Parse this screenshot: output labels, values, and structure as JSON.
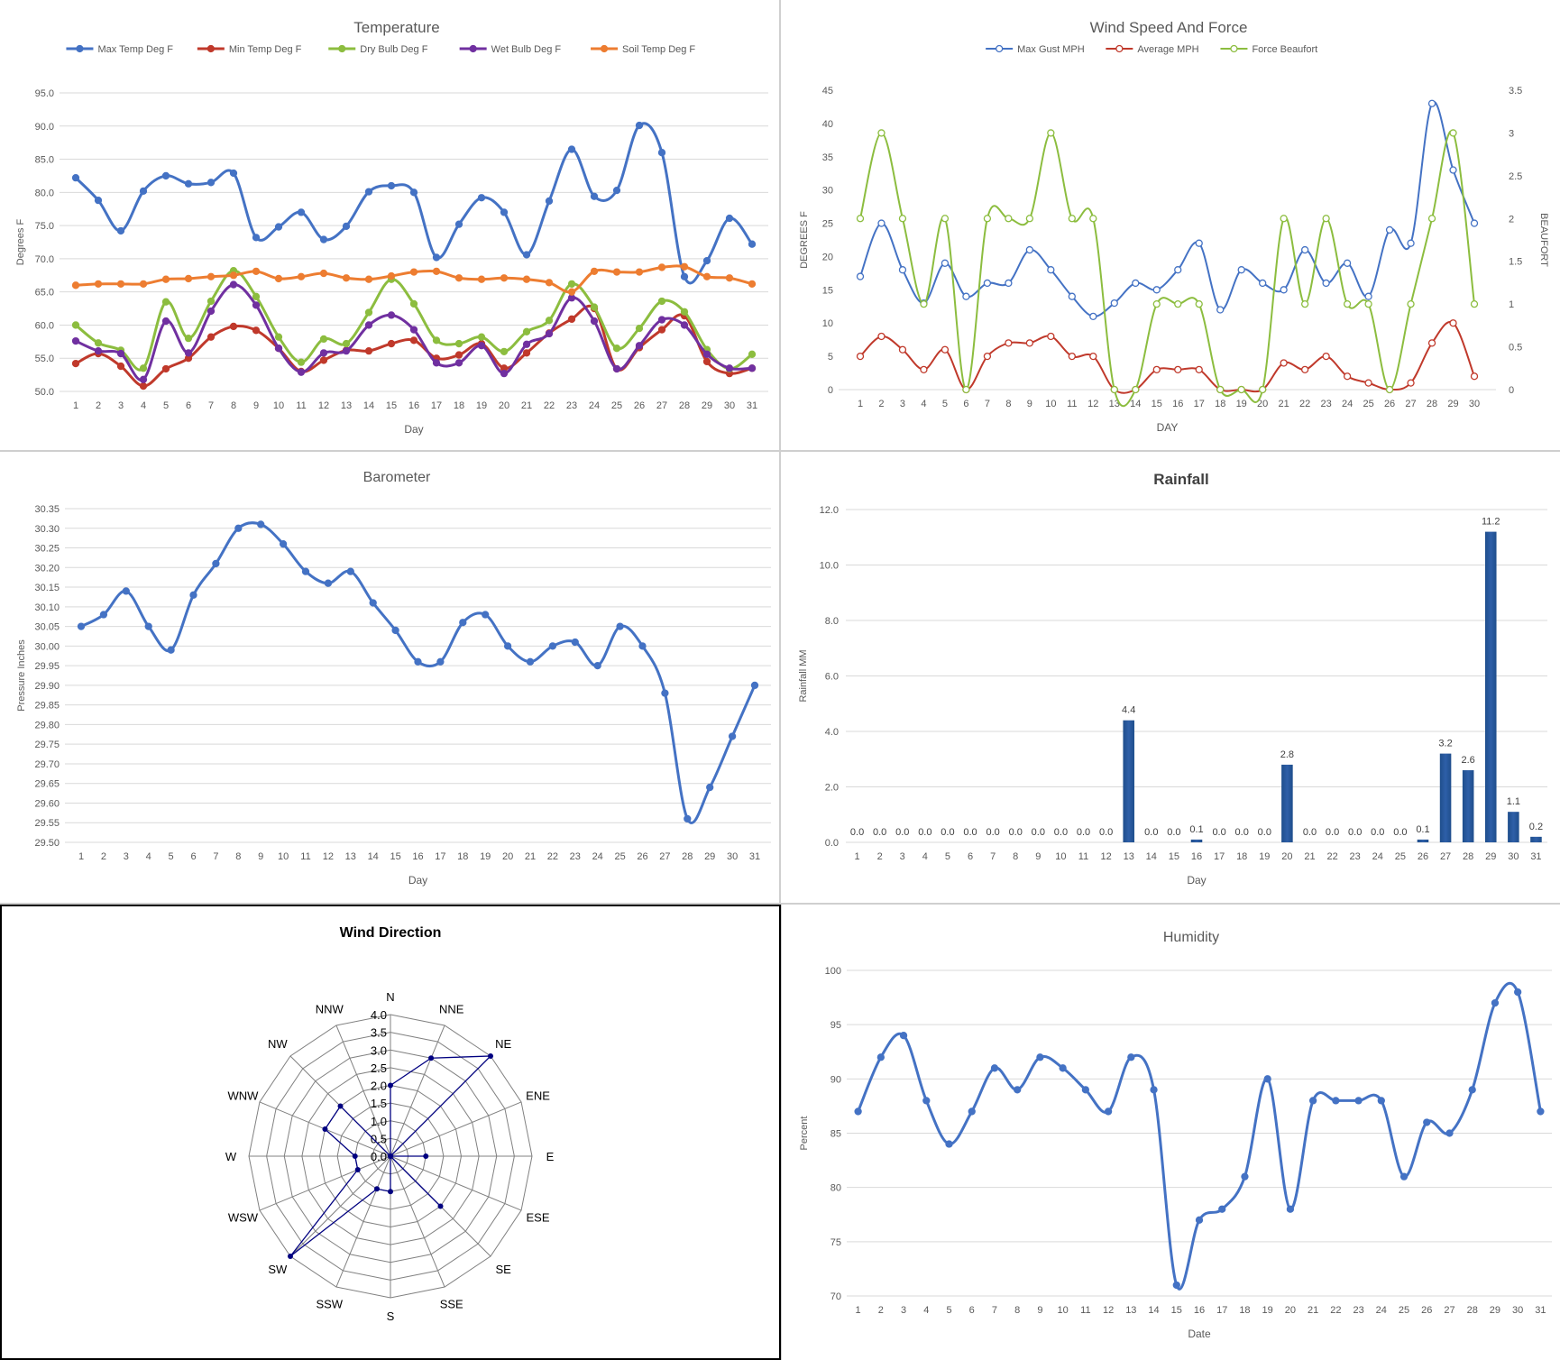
{
  "chart_data": [
    {
      "id": "temperature",
      "type": "line",
      "title": "Temperature",
      "xlabel": "Day",
      "ylabel": "Degrees F",
      "categories": [
        "1",
        "2",
        "3",
        "4",
        "5",
        "6",
        "7",
        "8",
        "9",
        "10",
        "11",
        "12",
        "13",
        "14",
        "15",
        "16",
        "17",
        "18",
        "19",
        "20",
        "21",
        "22",
        "23",
        "24",
        "25",
        "26",
        "27",
        "28",
        "29",
        "30",
        "31"
      ],
      "ylim": [
        50,
        95
      ],
      "yticks": [
        "50.0",
        "55.0",
        "60.0",
        "65.0",
        "70.0",
        "75.0",
        "80.0",
        "85.0",
        "90.0",
        "95.0"
      ],
      "grid": true,
      "legend": "top",
      "series": [
        {
          "name": "Max Temp Deg F",
          "color": "#4472c4",
          "values": [
            82.2,
            78.8,
            74.2,
            80.2,
            82.5,
            81.3,
            81.5,
            82.9,
            73.2,
            74.8,
            77.0,
            72.9,
            74.9,
            80.1,
            81.0,
            80.0,
            70.2,
            75.2,
            79.2,
            77.0,
            70.6,
            78.7,
            86.5,
            79.4,
            80.3,
            90.1,
            86.0,
            67.3,
            69.7,
            76.1,
            72.2
          ]
        },
        {
          "name": "Min Temp Deg F",
          "color": "#c0392b",
          "values": [
            54.2,
            55.7,
            53.8,
            50.8,
            53.4,
            55.0,
            58.2,
            59.8,
            59.2,
            56.5,
            53.0,
            54.7,
            56.2,
            56.1,
            57.2,
            57.7,
            55.0,
            55.5,
            57.2,
            53.5,
            55.8,
            58.8,
            60.9,
            62.5,
            53.4,
            56.6,
            59.3,
            61.4,
            54.5,
            52.7,
            53.5
          ]
        },
        {
          "name": "Dry Bulb Deg F",
          "color": "#8cbd3f",
          "values": [
            60.0,
            57.3,
            56.2,
            53.5,
            63.5,
            58.0,
            63.6,
            68.2,
            64.3,
            58.2,
            54.4,
            57.9,
            57.2,
            61.9,
            66.9,
            63.2,
            57.7,
            57.2,
            58.2,
            56.0,
            59.0,
            60.7,
            66.2,
            62.7,
            56.5,
            59.5,
            63.6,
            62.0,
            56.3,
            53.4,
            55.6
          ]
        },
        {
          "name": "Wet Bulb Deg F",
          "color": "#7030a0",
          "values": [
            57.6,
            56.1,
            55.7,
            51.8,
            60.6,
            55.8,
            62.1,
            66.1,
            63.0,
            56.5,
            52.9,
            55.8,
            56.1,
            60.0,
            61.5,
            59.3,
            54.3,
            54.3,
            56.9,
            52.7,
            57.1,
            58.7,
            64.1,
            60.6,
            53.4,
            56.9,
            60.8,
            60.0,
            55.6,
            53.5,
            53.5
          ]
        },
        {
          "name": "Soil Temp Deg F",
          "color": "#ed7d31",
          "values": [
            66.0,
            66.2,
            66.2,
            66.2,
            66.9,
            67.0,
            67.3,
            67.5,
            68.1,
            67.0,
            67.3,
            67.8,
            67.1,
            66.9,
            67.4,
            68.0,
            68.1,
            67.1,
            66.9,
            67.1,
            66.9,
            66.4,
            65.0,
            68.1,
            68.0,
            68.0,
            68.7,
            68.8,
            67.3,
            67.1,
            66.2
          ]
        }
      ]
    },
    {
      "id": "wind",
      "type": "line",
      "title": "Wind Speed And Force",
      "xlabel": "DAY",
      "ylabel": "DEGREES F",
      "ylabel2": "BEAUFORT",
      "categories": [
        "1",
        "2",
        "3",
        "4",
        "5",
        "6",
        "7",
        "8",
        "9",
        "10",
        "11",
        "12",
        "13",
        "14",
        "15",
        "16",
        "17",
        "18",
        "19",
        "20",
        "21",
        "22",
        "23",
        "24",
        "25",
        "26",
        "27",
        "28",
        "29",
        "30"
      ],
      "ylim": [
        0,
        45
      ],
      "yticks": [
        "0",
        "5",
        "10",
        "15",
        "20",
        "25",
        "30",
        "35",
        "40",
        "45"
      ],
      "y2lim": [
        0,
        3.5
      ],
      "y2ticks": [
        "0",
        "0.5",
        "1",
        "1.5",
        "2",
        "2.5",
        "3",
        "3.5"
      ],
      "grid": false,
      "legend": "top",
      "series": [
        {
          "name": "Max Gust MPH",
          "color": "#4472c4",
          "axis": "left",
          "values": [
            17,
            25,
            18,
            13,
            19,
            14,
            16,
            16,
            21,
            18,
            14,
            11,
            13,
            16,
            15,
            18,
            22,
            12,
            18,
            16,
            15,
            21,
            16,
            19,
            14,
            24,
            22,
            43,
            33,
            25
          ]
        },
        {
          "name": "Average MPH",
          "color": "#c0392b",
          "axis": "left",
          "values": [
            5,
            8,
            6,
            3,
            6,
            0,
            5,
            7,
            7,
            8,
            5,
            5,
            0,
            0,
            3,
            3,
            3,
            0,
            0,
            0,
            4,
            3,
            5,
            2,
            1,
            0,
            1,
            7,
            10,
            2
          ]
        },
        {
          "name": "Force Beaufort",
          "color": "#8cbd3f",
          "axis": "right",
          "values": [
            2,
            3,
            2,
            1,
            2,
            0,
            2,
            2,
            2,
            3,
            2,
            2,
            0,
            0,
            1,
            1,
            1,
            0,
            0,
            0,
            2,
            1,
            2,
            1,
            1,
            0,
            1,
            2,
            3,
            1
          ]
        }
      ]
    },
    {
      "id": "barometer",
      "type": "line",
      "title": "Barometer",
      "xlabel": "Day",
      "ylabel": "Pressure Inches",
      "categories": [
        "1",
        "2",
        "3",
        "4",
        "5",
        "6",
        "7",
        "8",
        "9",
        "10",
        "11",
        "12",
        "13",
        "14",
        "15",
        "16",
        "17",
        "18",
        "19",
        "20",
        "21",
        "22",
        "23",
        "24",
        "25",
        "26",
        "27",
        "28",
        "29",
        "30",
        "31"
      ],
      "ylim": [
        29.5,
        30.35
      ],
      "yticks": [
        "29.50",
        "29.55",
        "29.60",
        "29.65",
        "29.70",
        "29.75",
        "29.80",
        "29.85",
        "29.90",
        "29.95",
        "30.00",
        "30.05",
        "30.10",
        "30.15",
        "30.20",
        "30.25",
        "30.30",
        "30.35"
      ],
      "grid": true,
      "series": [
        {
          "name": "",
          "color": "#4472c4",
          "values": [
            30.05,
            30.08,
            30.14,
            30.05,
            29.99,
            30.13,
            30.21,
            30.3,
            30.31,
            30.26,
            30.19,
            30.16,
            30.19,
            30.11,
            30.04,
            29.96,
            29.96,
            30.06,
            30.08,
            30.0,
            29.96,
            30.0,
            30.01,
            29.95,
            30.05,
            30.0,
            29.88,
            29.56,
            29.64,
            29.77,
            29.9
          ]
        }
      ]
    },
    {
      "id": "rainfall",
      "type": "bar",
      "title": "Rainfall",
      "xlabel": "Day",
      "ylabel": "Rainfall MM",
      "categories": [
        "1",
        "2",
        "3",
        "4",
        "5",
        "6",
        "7",
        "8",
        "9",
        "10",
        "11",
        "12",
        "13",
        "14",
        "15",
        "16",
        "17",
        "18",
        "19",
        "20",
        "21",
        "22",
        "23",
        "24",
        "25",
        "26",
        "27",
        "28",
        "29",
        "30",
        "31"
      ],
      "ylim": [
        0,
        12
      ],
      "yticks": [
        "0.0",
        "2.0",
        "4.0",
        "6.0",
        "8.0",
        "10.0",
        "12.0"
      ],
      "grid": true,
      "values": [
        0.0,
        0.0,
        0.0,
        0.0,
        0.0,
        0.0,
        0.0,
        0.0,
        0.0,
        0.0,
        0.0,
        0.0,
        4.4,
        0.0,
        0.0,
        0.1,
        0.0,
        0.0,
        0.0,
        2.8,
        0.0,
        0.0,
        0.0,
        0.0,
        0.0,
        0.1,
        3.2,
        2.6,
        11.2,
        1.1,
        0.2
      ],
      "labels": [
        "0.0",
        "0.0",
        "0.0",
        "0.0",
        "0.0",
        "0.0",
        "0.0",
        "0.0",
        "0.0",
        "0.0",
        "0.0",
        "0.0",
        "4.4",
        "0.0",
        "0.0",
        "0.1",
        "0.0",
        "0.0",
        "0.0",
        "2.8",
        "0.0",
        "0.0",
        "0.0",
        "0.0",
        "0.0",
        "0.1",
        "3.2",
        "2.6",
        "11.2",
        "1.1",
        "0.2"
      ],
      "color": "#2e5fa8"
    },
    {
      "id": "wind_direction",
      "type": "radar",
      "title": "Wind Direction",
      "categories": [
        "N",
        "NNE",
        "NE",
        "ENE",
        "E",
        "ESE",
        "SE",
        "SSE",
        "S",
        "SSW",
        "SW",
        "WSW",
        "W",
        "WNW",
        "NW",
        "NNW"
      ],
      "rlim": [
        0,
        4
      ],
      "rticks": [
        "0.0",
        "0.5",
        "1.0",
        "1.5",
        "2.0",
        "2.5",
        "3.0",
        "3.5",
        "4.0"
      ],
      "values": [
        2,
        3,
        4,
        0,
        1,
        0,
        2,
        0,
        1,
        1,
        4,
        1,
        1,
        2,
        2,
        0
      ],
      "color": "#000080"
    },
    {
      "id": "humidity",
      "type": "line",
      "title": "Humidity",
      "xlabel": "Date",
      "ylabel": "Percent",
      "categories": [
        "1",
        "2",
        "3",
        "4",
        "5",
        "6",
        "7",
        "8",
        "9",
        "10",
        "11",
        "12",
        "13",
        "14",
        "15",
        "16",
        "17",
        "18",
        "19",
        "20",
        "21",
        "22",
        "23",
        "24",
        "25",
        "26",
        "27",
        "28",
        "29",
        "30",
        "31"
      ],
      "ylim": [
        70,
        100
      ],
      "yticks": [
        "70",
        "75",
        "80",
        "85",
        "90",
        "95",
        "100"
      ],
      "grid": true,
      "series": [
        {
          "name": "",
          "color": "#4472c4",
          "values": [
            87,
            92,
            94,
            88,
            84,
            87,
            91,
            89,
            92,
            91,
            89,
            87,
            92,
            89,
            71,
            77,
            78,
            81,
            90,
            78,
            88,
            88,
            88,
            88,
            81,
            86,
            85,
            89,
            97,
            98,
            87
          ]
        }
      ]
    }
  ]
}
